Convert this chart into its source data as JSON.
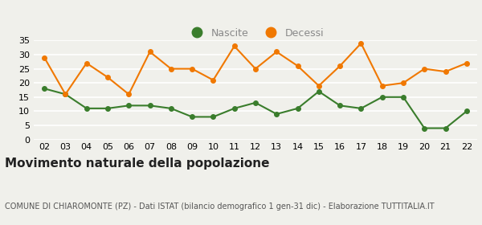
{
  "years": [
    "02",
    "03",
    "04",
    "05",
    "06",
    "07",
    "08",
    "09",
    "10",
    "11",
    "12",
    "13",
    "14",
    "15",
    "16",
    "17",
    "18",
    "19",
    "20",
    "21",
    "22"
  ],
  "nascite": [
    18,
    16,
    11,
    11,
    12,
    12,
    11,
    8,
    8,
    11,
    13,
    9,
    11,
    17,
    12,
    11,
    15,
    15,
    4,
    4,
    10
  ],
  "decessi": [
    29,
    16,
    27,
    22,
    16,
    31,
    25,
    25,
    21,
    33,
    25,
    31,
    26,
    19,
    26,
    34,
    19,
    20,
    25,
    24,
    27
  ],
  "nascite_color": "#3a7d2c",
  "decessi_color": "#f07800",
  "background_color": "#f0f0eb",
  "grid_color": "#ffffff",
  "ylim": [
    0,
    35
  ],
  "yticks": [
    0,
    5,
    10,
    15,
    20,
    25,
    30,
    35
  ],
  "title": "Movimento naturale della popolazione",
  "subtitle": "COMUNE DI CHIAROMONTE (PZ) - Dati ISTAT (bilancio demografico 1 gen-31 dic) - Elaborazione TUTTITALIA.IT",
  "legend_nascite": "Nascite",
  "legend_decessi": "Decessi",
  "title_fontsize": 11,
  "subtitle_fontsize": 7,
  "tick_fontsize": 8,
  "legend_fontsize": 9,
  "marker_size": 4,
  "line_width": 1.5
}
